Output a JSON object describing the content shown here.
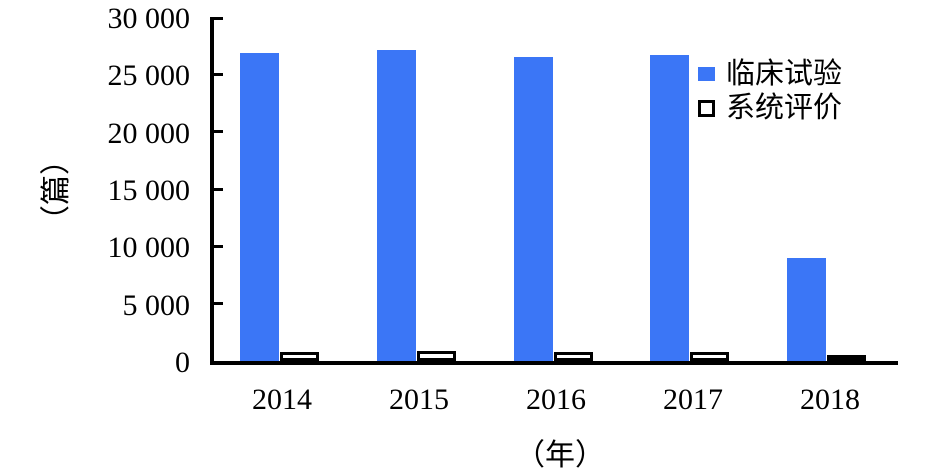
{
  "chart_data": {
    "type": "bar",
    "title": "",
    "categories": [
      "2014",
      "2015",
      "2016",
      "2017",
      "2018"
    ],
    "series": [
      {
        "key": "clinical-trials",
        "name": "临床试验",
        "style": "filled",
        "color": "#3B76F6",
        "values": [
          26900,
          27100,
          26500,
          26700,
          9000
        ]
      },
      {
        "key": "systematic-reviews",
        "name": "系统评价",
        "style": "outlined",
        "color": "#FFFFFF",
        "border_color": "#000000",
        "values": [
          750,
          900,
          800,
          750,
          550
        ]
      }
    ],
    "xlabel": "（年）",
    "ylabel": "（篇）",
    "ylim": [
      0,
      30000
    ],
    "ytick_interval": 5000,
    "ytick_labels": [
      "0",
      "5 000",
      "10 000",
      "15 000",
      "20 000",
      "25 000",
      "30 000"
    ],
    "grid": false,
    "legend_position": "inside-top-right"
  },
  "colors": {
    "axis": "#000000",
    "background": "#FFFFFF",
    "bar_blue": "#3B76F6"
  }
}
